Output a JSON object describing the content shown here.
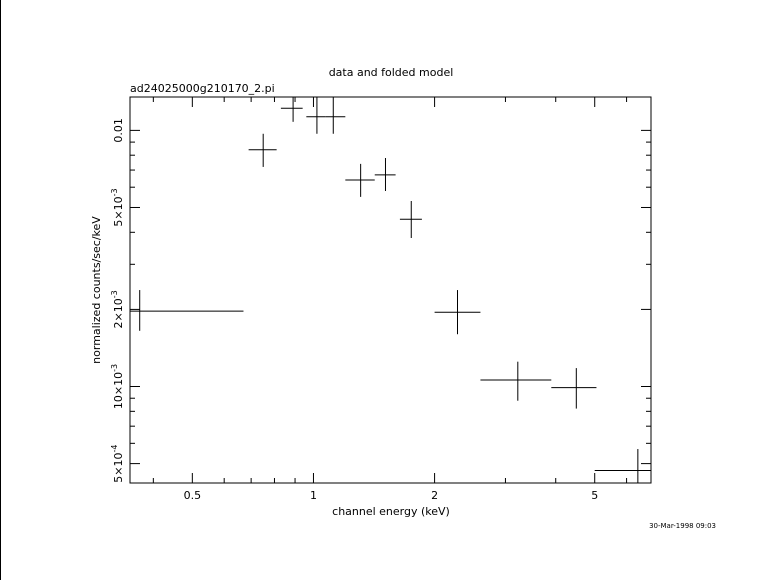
{
  "chart_data": {
    "type": "scatter",
    "title": "data and folded model",
    "subtitle": "ad24025000g210170_2.pi",
    "xlabel": "channel energy (keV)",
    "ylabel": "normalized counts/sec/keV",
    "timestamp": "30-Mar-1998 09:03",
    "x_scale": "log",
    "y_scale": "log",
    "xlim": [
      0.35,
      6.9
    ],
    "ylim": [
      0.00042,
      0.0135
    ],
    "x_ticks": [
      {
        "value": 0.5,
        "label": "0.5"
      },
      {
        "value": 1,
        "label": "1"
      },
      {
        "value": 2,
        "label": "2"
      },
      {
        "value": 5,
        "label": "5"
      }
    ],
    "y_ticks": [
      {
        "value": 0.0005,
        "mantissa": "5",
        "exp": "-4"
      },
      {
        "value": 0.001,
        "mantissa": "10",
        "exp": "-3"
      },
      {
        "value": 0.002,
        "mantissa": "2",
        "exp": "-3"
      },
      {
        "value": 0.005,
        "mantissa": "5",
        "exp": "-3"
      },
      {
        "value": 0.01,
        "mantissa": "0.01",
        "exp": ""
      }
    ],
    "points": [
      {
        "x": 0.37,
        "xlo": 0.35,
        "xhi": 0.67,
        "y": 0.00197,
        "ylo": 0.00165,
        "yhi": 0.00238
      },
      {
        "x": 0.75,
        "xlo": 0.69,
        "xhi": 0.81,
        "y": 0.0084,
        "ylo": 0.0072,
        "yhi": 0.0097
      },
      {
        "x": 0.89,
        "xlo": 0.83,
        "xhi": 0.94,
        "y": 0.0122,
        "ylo": 0.0108,
        "yhi": 0.0135
      },
      {
        "x": 1.02,
        "xlo": 0.96,
        "xhi": 1.07,
        "y": 0.0113,
        "ylo": 0.0097,
        "yhi": 0.0135
      },
      {
        "x": 1.12,
        "xlo": 1.07,
        "xhi": 1.2,
        "y": 0.0113,
        "ylo": 0.0097,
        "yhi": 0.0135
      },
      {
        "x": 1.31,
        "xlo": 1.2,
        "xhi": 1.42,
        "y": 0.0064,
        "ylo": 0.0055,
        "yhi": 0.0074
      },
      {
        "x": 1.51,
        "xlo": 1.42,
        "xhi": 1.6,
        "y": 0.0067,
        "ylo": 0.0058,
        "yhi": 0.0078
      },
      {
        "x": 1.75,
        "xlo": 1.64,
        "xhi": 1.86,
        "y": 0.0045,
        "ylo": 0.0038,
        "yhi": 0.0053
      },
      {
        "x": 2.28,
        "xlo": 2.0,
        "xhi": 2.6,
        "y": 0.00195,
        "ylo": 0.0016,
        "yhi": 0.00238
      },
      {
        "x": 3.22,
        "xlo": 2.6,
        "xhi": 3.9,
        "y": 0.00106,
        "ylo": 0.00088,
        "yhi": 0.00125
      },
      {
        "x": 4.5,
        "xlo": 3.9,
        "xhi": 5.05,
        "y": 0.00099,
        "ylo": 0.00082,
        "yhi": 0.00118
      },
      {
        "x": 6.4,
        "xlo": 5.0,
        "xhi": 6.9,
        "y": 0.00047,
        "ylo": 0.00042,
        "yhi": 0.00057
      }
    ]
  }
}
